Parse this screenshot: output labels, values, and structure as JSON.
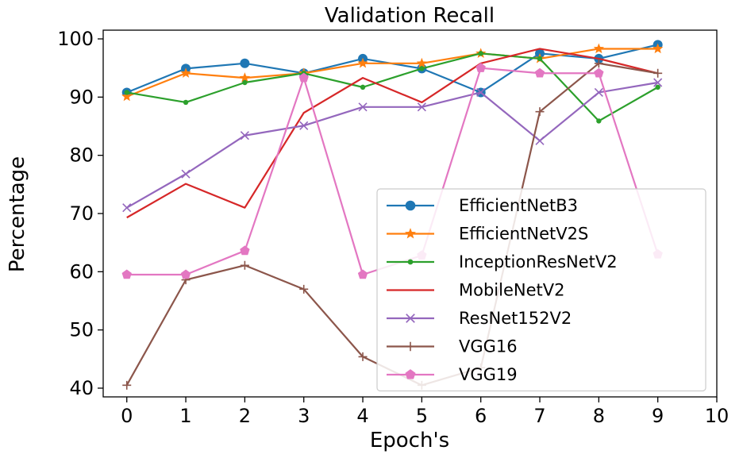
{
  "chart_data": {
    "type": "line",
    "title": "Validation Recall",
    "xlabel": "Epoch's",
    "ylabel": "Percentage",
    "xlim": [
      -0.4,
      10
    ],
    "ylim": [
      38.5,
      101.5
    ],
    "xticks": [
      0,
      1,
      2,
      3,
      4,
      5,
      6,
      7,
      8,
      9,
      10
    ],
    "yticks": [
      40,
      50,
      60,
      70,
      80,
      90,
      100
    ],
    "grid": false,
    "legend_position": "center-right",
    "x": [
      0,
      1,
      2,
      3,
      4,
      5,
      6,
      7,
      8,
      9
    ],
    "series": [
      {
        "name": "EfficientNetB3",
        "color": "#1f77b4",
        "marker": "circle",
        "values": [
          90.8,
          94.9,
          95.8,
          94.1,
          96.6,
          94.9,
          90.8,
          97.5,
          96.6,
          99.0
        ]
      },
      {
        "name": "EfficientNetV2S",
        "color": "#ff7f0e",
        "marker": "star",
        "values": [
          90.1,
          94.1,
          93.3,
          94.1,
          95.8,
          95.8,
          97.5,
          96.6,
          98.3,
          98.3
        ]
      },
      {
        "name": "InceptionResNetV2",
        "color": "#2ca02c",
        "marker": "dot",
        "values": [
          90.8,
          89.1,
          92.5,
          94.1,
          91.7,
          94.9,
          97.5,
          96.6,
          85.9,
          91.7
        ]
      },
      {
        "name": "MobileNetV2",
        "color": "#d62728",
        "marker": "none",
        "values": [
          69.3,
          75.1,
          71.0,
          87.3,
          93.3,
          89.1,
          95.8,
          98.3,
          96.6,
          94.1
        ]
      },
      {
        "name": "ResNet152V2",
        "color": "#9467bd",
        "marker": "x",
        "values": [
          71.0,
          76.8,
          83.4,
          85.1,
          88.3,
          88.3,
          90.8,
          82.5,
          90.8,
          92.5
        ]
      },
      {
        "name": "VGG16",
        "color": "#8c564b",
        "marker": "plus",
        "values": [
          40.5,
          58.6,
          61.1,
          57.0,
          45.4,
          40.5,
          43.5,
          87.5,
          95.8,
          94.1
        ]
      },
      {
        "name": "VGG19",
        "color": "#e377c2",
        "marker": "pentagon",
        "values": [
          59.5,
          59.5,
          63.6,
          93.3,
          59.5,
          62.8,
          95.0,
          94.1,
          94.1,
          63.0
        ]
      }
    ]
  }
}
